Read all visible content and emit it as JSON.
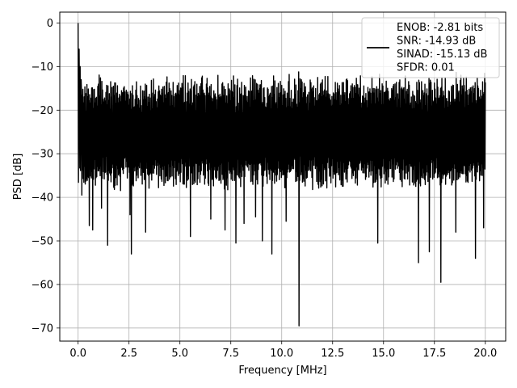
{
  "chart_data": {
    "type": "line",
    "title": "",
    "xlabel": "Frequency [MHz]",
    "ylabel": "PSD [dB]",
    "xlim": [
      -0.9,
      21.0
    ],
    "ylim": [
      -73.0,
      2.5
    ],
    "xticks": [
      0.0,
      2.5,
      5.0,
      7.5,
      10.0,
      12.5,
      15.0,
      17.5,
      20.0
    ],
    "xtick_labels": [
      "0.0",
      "2.5",
      "5.0",
      "7.5",
      "10.0",
      "12.5",
      "15.0",
      "17.5",
      "20.0"
    ],
    "yticks": [
      0,
      -10,
      -20,
      -30,
      -40,
      -50,
      -60,
      -70
    ],
    "ytick_labels": [
      "0",
      "−10",
      "−20",
      "−30",
      "−40",
      "−50",
      "−60",
      "−70"
    ],
    "grid": true,
    "legend_position": "top-right",
    "line_color": "#000000",
    "series": [
      {
        "name": "ENOB: -2.81 bits\nSNR: -14.93 dB\nSINAD: -15.13 dB\nSFDR: 0.01",
        "legend_lines": [
          "ENOB: -2.81 bits",
          "SNR: -14.93 dB",
          "SINAD: -15.13 dB",
          "SFDR: 0.01"
        ],
        "x_range": [
          0.0,
          20.0
        ],
        "points": 1200,
        "noise_floor_db": -26,
        "upper_envelope_db": -14,
        "lower_envelope_db": -36,
        "peaks": [
          [
            0.0,
            0.0
          ],
          [
            0.05,
            -6.0
          ],
          [
            0.1,
            -10.0
          ],
          [
            0.15,
            -13.0
          ]
        ],
        "notches": [
          [
            0.18,
            -39.5
          ],
          [
            0.55,
            -46.5
          ],
          [
            0.7,
            -47.5
          ],
          [
            1.15,
            -42.5
          ],
          [
            1.45,
            -51.0
          ],
          [
            2.55,
            -44.0
          ],
          [
            2.6,
            -53.0
          ],
          [
            3.3,
            -48.0
          ],
          [
            5.5,
            -49.0
          ],
          [
            6.5,
            -45.0
          ],
          [
            7.2,
            -47.5
          ],
          [
            7.75,
            -50.5
          ],
          [
            8.15,
            -46.0
          ],
          [
            8.7,
            -44.5
          ],
          [
            9.05,
            -50.0
          ],
          [
            9.5,
            -53.0
          ],
          [
            10.2,
            -45.5
          ],
          [
            10.85,
            -69.5
          ],
          [
            14.7,
            -50.5
          ],
          [
            16.7,
            -55.0
          ],
          [
            17.25,
            -52.5
          ],
          [
            17.8,
            -59.5
          ],
          [
            18.55,
            -48.0
          ],
          [
            19.5,
            -54.0
          ],
          [
            19.9,
            -47.0
          ]
        ]
      }
    ]
  }
}
